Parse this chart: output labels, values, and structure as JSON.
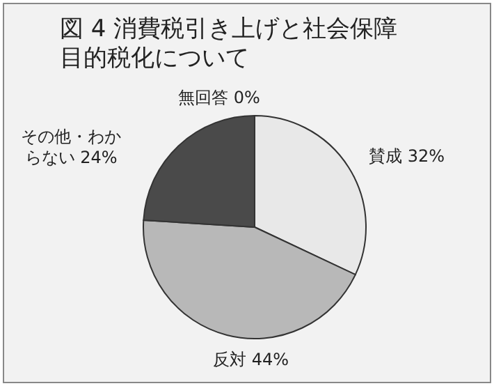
{
  "chart_data": {
    "type": "pie",
    "title": "図 4 消費税引き上げと社会保障目的税化について",
    "categories": [
      "賛成",
      "反対",
      "その他・わからない",
      "無回答"
    ],
    "values": [
      32,
      44,
      24,
      0
    ],
    "value_labels": [
      "32%",
      "44%",
      "24%",
      "0%"
    ],
    "colors": [
      "#e8e8e8",
      "#b8b8b8",
      "#4a4a4a",
      "#ffffff"
    ]
  }
}
